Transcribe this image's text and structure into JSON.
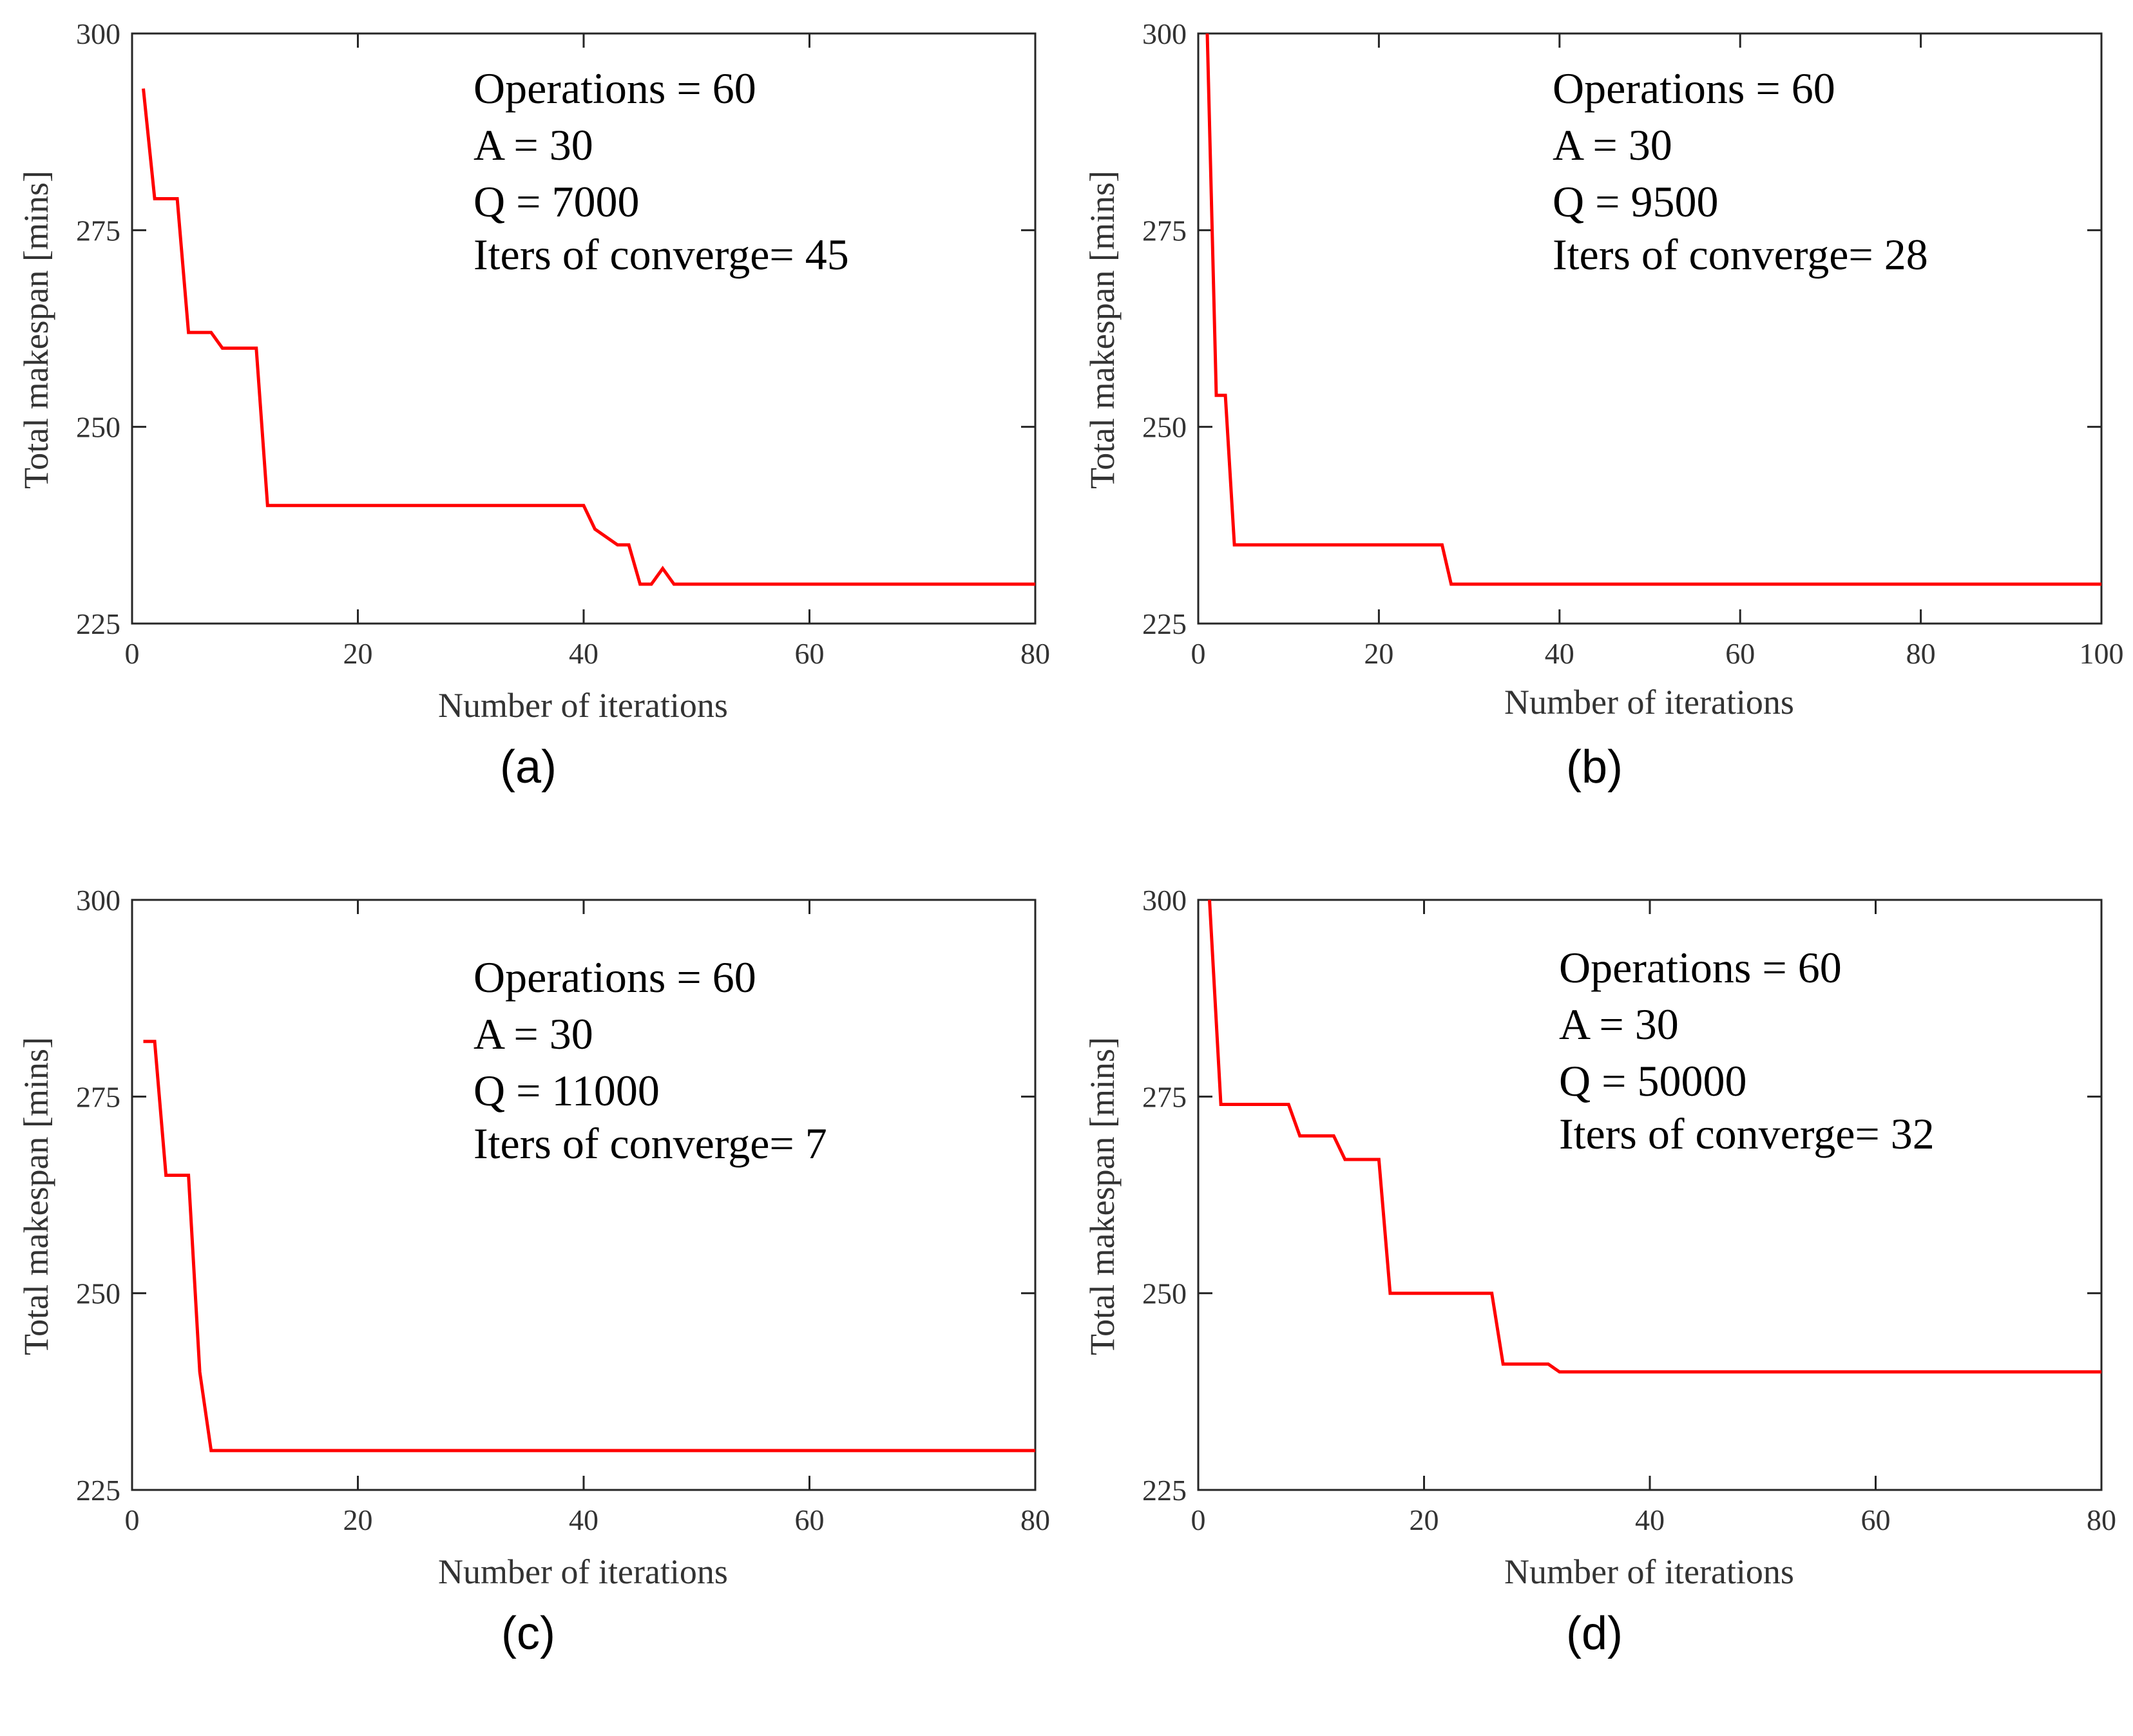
{
  "style": {
    "line_color": "#ff0000",
    "axis_color": "#262626",
    "tick_text_color": "#333333"
  },
  "chart_data": [
    {
      "type": "line",
      "caption": "(a)",
      "xlabel": "Number of iterations",
      "ylabel": "Total makespan [mins]",
      "xlim": [
        0,
        80
      ],
      "ylim": [
        225,
        300
      ],
      "xticks": [
        0,
        20,
        40,
        60,
        80
      ],
      "yticks": [
        225,
        250,
        275,
        300
      ],
      "annotation": [
        "Operations = 60",
        "A = 30",
        "Q = 7000",
        "Iters of converge= 45"
      ],
      "series": [
        {
          "name": "makespan",
          "x": [
            1,
            2,
            4,
            5,
            7,
            8,
            11,
            12,
            40,
            41,
            43,
            44,
            45,
            46,
            47,
            48,
            80
          ],
          "y": [
            293,
            279,
            279,
            262,
            262,
            260,
            260,
            240,
            240,
            237,
            235,
            235,
            230,
            230,
            232,
            230,
            230
          ]
        }
      ]
    },
    {
      "type": "line",
      "caption": "(b)",
      "xlabel": "Number of iterations",
      "ylabel": "Total makespan [mins]",
      "xlim": [
        0,
        100
      ],
      "ylim": [
        225,
        300
      ],
      "xticks": [
        0,
        20,
        40,
        60,
        80,
        100
      ],
      "yticks": [
        225,
        250,
        275,
        300
      ],
      "annotation": [
        "Operations = 60",
        "A = 30",
        "Q = 9500",
        "Iters of converge= 28"
      ],
      "series": [
        {
          "name": "makespan",
          "x": [
            1,
            2,
            3,
            4,
            27,
            28,
            100
          ],
          "y": [
            300,
            254,
            254,
            235,
            235,
            230,
            230
          ]
        }
      ]
    },
    {
      "type": "line",
      "caption": "(c)",
      "xlabel": "Number of iterations",
      "ylabel": "Total makespan [mins]",
      "xlim": [
        0,
        80
      ],
      "ylim": [
        225,
        300
      ],
      "xticks": [
        0,
        20,
        40,
        60,
        80
      ],
      "yticks": [
        225,
        250,
        275,
        300
      ],
      "annotation": [
        "Operations = 60",
        "A = 30",
        "Q = 11000",
        "Iters of converge= 7"
      ],
      "series": [
        {
          "name": "makespan",
          "x": [
            1,
            2,
            3,
            5,
            6,
            7,
            80
          ],
          "y": [
            282,
            282,
            265,
            265,
            240,
            230,
            230
          ]
        }
      ]
    },
    {
      "type": "line",
      "caption": "(d)",
      "xlabel": "Number of iterations",
      "ylabel": "Total makespan [mins]",
      "xlim": [
        0,
        80
      ],
      "ylim": [
        225,
        300
      ],
      "xticks": [
        0,
        20,
        40,
        60,
        80
      ],
      "yticks": [
        225,
        250,
        275,
        300
      ],
      "annotation": [
        "Operations = 60",
        "A = 30",
        "Q = 50000",
        "Iters of converge= 32"
      ],
      "series": [
        {
          "name": "makespan",
          "x": [
            1,
            2,
            8,
            9,
            12,
            13,
            16,
            17,
            26,
            27,
            31,
            32,
            80
          ],
          "y": [
            300,
            274,
            274,
            270,
            270,
            267,
            267,
            250,
            250,
            241,
            241,
            240,
            240
          ]
        }
      ]
    }
  ]
}
